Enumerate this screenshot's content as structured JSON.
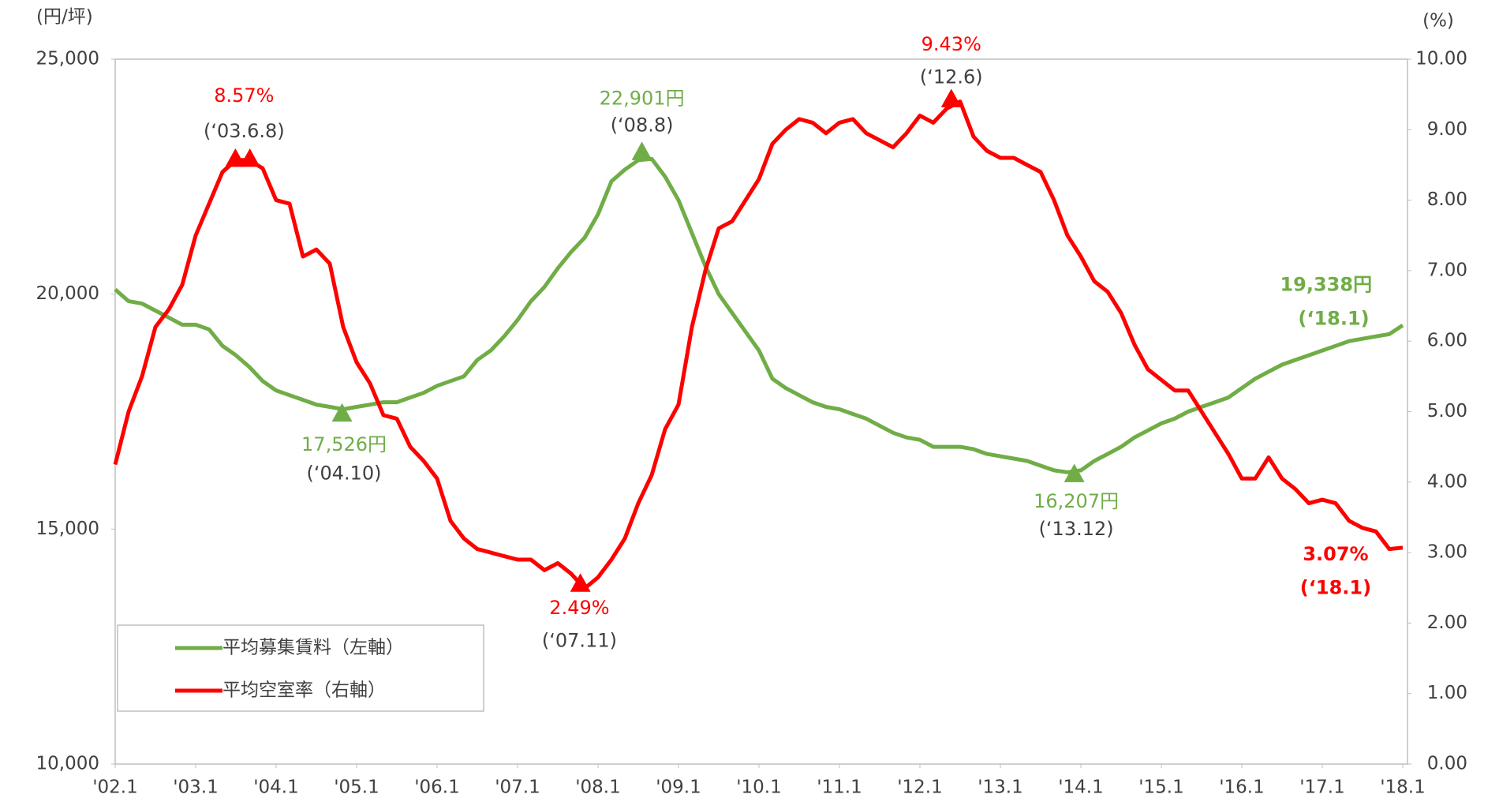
{
  "chart_data": {
    "type": "line",
    "y_label": "(円/坪)",
    "y2_label": "(%)",
    "categories": [
      "'02.1",
      null,
      null,
      null,
      null,
      null,
      "'03.1",
      null,
      null,
      null,
      null,
      null,
      "'04.1",
      null,
      null,
      null,
      null,
      null,
      "'05.1",
      null,
      null,
      null,
      null,
      null,
      "'06.1",
      null,
      null,
      null,
      null,
      null,
      "'07.1",
      null,
      null,
      null,
      null,
      null,
      "'08.1",
      null,
      null,
      null,
      null,
      null,
      "'09.1",
      null,
      null,
      null,
      null,
      null,
      "'10.1",
      null,
      null,
      null,
      null,
      null,
      "'11.1",
      null,
      null,
      null,
      null,
      null,
      "'12.1",
      null,
      null,
      null,
      null,
      null,
      "'13.1",
      null,
      null,
      null,
      null,
      null,
      "'14.1",
      null,
      null,
      null,
      null,
      null,
      "'15.1",
      null,
      null,
      null,
      null,
      null,
      "'16.1",
      null,
      null,
      null,
      null,
      null,
      "'17.1",
      null,
      null,
      null,
      null,
      null,
      "'18.1"
    ],
    "series": [
      {
        "name": "平均募集賃料（左軸）",
        "color": "#70ad47",
        "values": [
          20100,
          19850,
          19800,
          19650,
          19500,
          19350,
          19350,
          19250,
          18900,
          18700,
          18450,
          18150,
          17950,
          17850,
          17750,
          17650,
          17600,
          17550,
          17600,
          17650,
          17700,
          17700,
          17800,
          17900,
          18050,
          18150,
          18250,
          18600,
          18800,
          19100,
          19450,
          19850,
          20150,
          20550,
          20900,
          21200,
          21700,
          22400,
          22650,
          22850,
          22880,
          22500,
          22000,
          21300,
          20600,
          20000,
          19600,
          19200,
          18800,
          18200,
          18000,
          17850,
          17700,
          17600,
          17550,
          17450,
          17350,
          17200,
          17050,
          16950,
          16900,
          16750,
          16750,
          16750,
          16700,
          16600,
          16550,
          16500,
          16450,
          16350,
          16250,
          16210,
          16250,
          16450,
          16600,
          16750,
          16950,
          17100,
          17250,
          17350,
          17500,
          17600,
          17700,
          17800,
          18000,
          18200,
          18350,
          18500,
          18600,
          18700,
          18800,
          18900,
          19000,
          19050,
          19100,
          19150,
          19338
        ]
      },
      {
        "name": "平均空室率（右軸）",
        "color": "#ff0000",
        "axis": "y2",
        "values": [
          4.25,
          5.0,
          5.5,
          6.2,
          6.45,
          6.8,
          7.5,
          7.95,
          8.4,
          8.57,
          8.57,
          8.45,
          8.0,
          7.95,
          7.2,
          7.3,
          7.1,
          6.2,
          5.7,
          5.4,
          4.95,
          4.9,
          4.5,
          4.3,
          4.05,
          3.45,
          3.2,
          3.05,
          3.0,
          2.95,
          2.9,
          2.9,
          2.75,
          2.85,
          2.7,
          2.49,
          2.65,
          2.9,
          3.2,
          3.7,
          4.1,
          4.75,
          5.1,
          6.2,
          7.0,
          7.6,
          7.7,
          8.0,
          8.3,
          8.8,
          9.0,
          9.15,
          9.1,
          8.95,
          9.1,
          9.15,
          8.95,
          8.85,
          8.75,
          8.95,
          9.2,
          9.1,
          9.3,
          9.4,
          8.9,
          8.7,
          8.6,
          8.6,
          8.5,
          8.4,
          8.0,
          7.5,
          7.2,
          6.85,
          6.7,
          6.4,
          5.95,
          5.6,
          5.45,
          5.3,
          5.3,
          5.0,
          4.7,
          4.4,
          4.05,
          4.05,
          4.35,
          4.05,
          3.9,
          3.7,
          3.75,
          3.7,
          3.45,
          3.35,
          3.3,
          3.05,
          3.07
        ]
      }
    ],
    "ylim": [
      10000,
      25000
    ],
    "yticks": [
      {
        "value": 10000,
        "label": "10,000"
      },
      {
        "value": 15000,
        "label": "15,000"
      },
      {
        "value": 20000,
        "label": "20,000"
      },
      {
        "value": 25000,
        "label": "25,000"
      }
    ],
    "y2lim": [
      0,
      10
    ],
    "y2ticks": [
      {
        "value": 0,
        "label": "0.00"
      },
      {
        "value": 1,
        "label": "1.00"
      },
      {
        "value": 2,
        "label": "2.00"
      },
      {
        "value": 3,
        "label": "3.00"
      },
      {
        "value": 4,
        "label": "4.00"
      },
      {
        "value": 5,
        "label": "5.00"
      },
      {
        "value": 6,
        "label": "6.00"
      },
      {
        "value": 7,
        "label": "7.00"
      },
      {
        "value": 8,
        "label": "8.00"
      },
      {
        "value": 9,
        "label": "9.00"
      },
      {
        "value": 10,
        "label": "10.00"
      }
    ],
    "grid": false,
    "legend": "lower left",
    "annotations": [
      "8.57%",
      "(‘03.6.8)",
      "22,901円",
      "(‘08.8)",
      "9.43%",
      "(‘12.6)",
      "17,526円",
      "(‘04.10)",
      "2.49%",
      "(‘07.11)",
      "16,207円",
      "(‘13.12)",
      "19,338円",
      "(‘18.1)",
      "3.07%",
      "(‘18.1)"
    ]
  }
}
